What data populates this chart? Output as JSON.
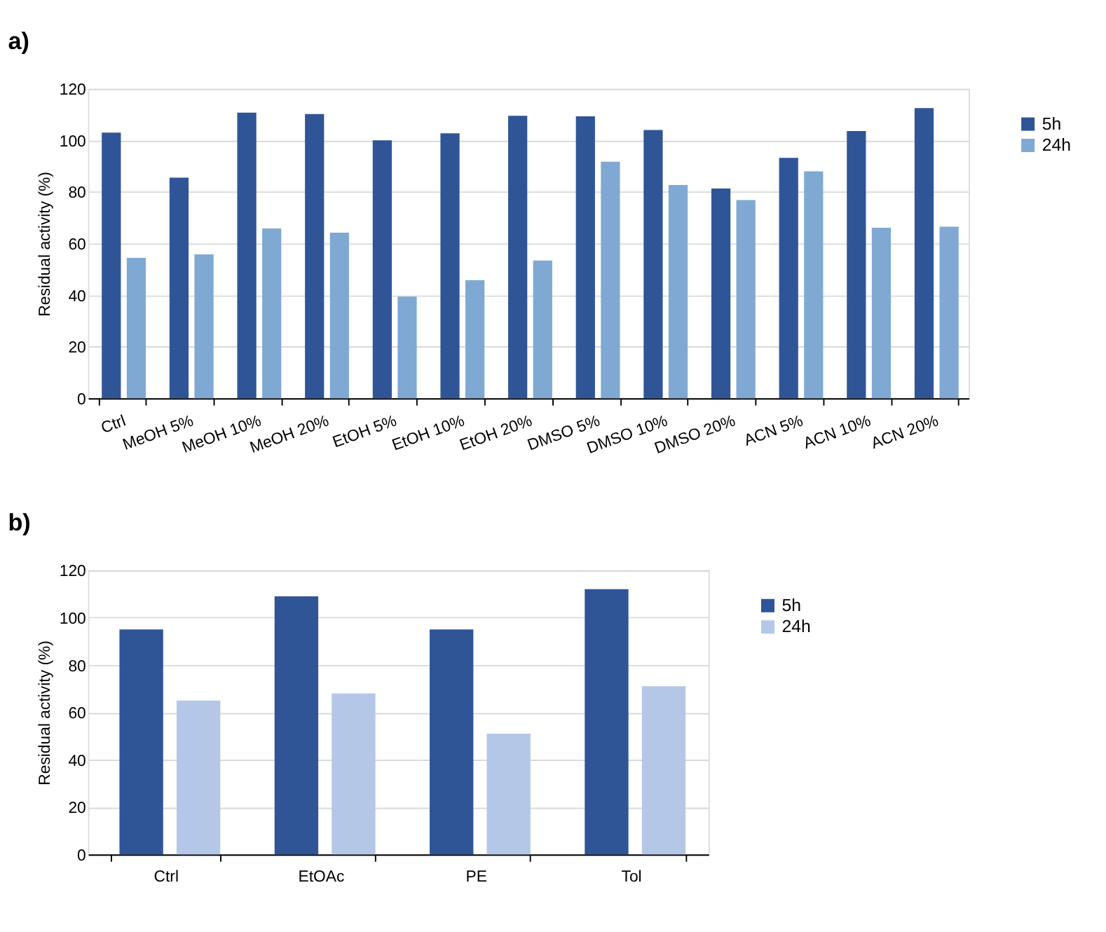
{
  "chart_data": [
    {
      "type": "bar",
      "title": "a)",
      "ylabel": "Residual activity (%)",
      "categories": [
        "Ctrl",
        "MeOH 5%",
        "MeOH 10%",
        "MeOH 20%",
        "EtOH 5%",
        "EtOH 10%",
        "EtOH 20%",
        "DMSO 5%",
        "DMSO 10%",
        "DMSO 20%",
        "ACN 5%",
        "ACN  10%",
        "ACN 20%"
      ],
      "series": [
        {
          "name": "5h",
          "color": "#2f5597",
          "values": [
            103,
            85.5,
            110.7,
            110.2,
            100,
            102.7,
            109.5,
            109.3,
            104,
            81.3,
            93.2,
            103.6,
            112.5
          ]
        },
        {
          "name": "24h",
          "color": "#7fa9d3",
          "values": [
            54.4,
            55.8,
            65.8,
            64.2,
            39.4,
            45.8,
            53.4,
            91.7,
            82.7,
            76.8,
            88,
            66.1,
            66.5
          ]
        }
      ],
      "ylim": [
        0,
        120
      ],
      "yticks": [
        0,
        20,
        40,
        60,
        80,
        100,
        120
      ],
      "grid": "y",
      "legend": "right"
    },
    {
      "type": "bar",
      "title": "b)",
      "ylabel": "Residual activity (%)",
      "categories": [
        "Ctrl",
        "EtOAc",
        "PE",
        "Tol"
      ],
      "series": [
        {
          "name": "5h",
          "color": "#2f5597",
          "values": [
            95,
            109,
            95,
            112
          ]
        },
        {
          "name": "24h",
          "color": "#b4c7e7",
          "values": [
            65,
            68,
            51,
            71
          ]
        }
      ],
      "ylim": [
        0,
        120
      ],
      "yticks": [
        0,
        20,
        40,
        60,
        80,
        100,
        120
      ],
      "grid": "y",
      "legend": "right"
    }
  ]
}
